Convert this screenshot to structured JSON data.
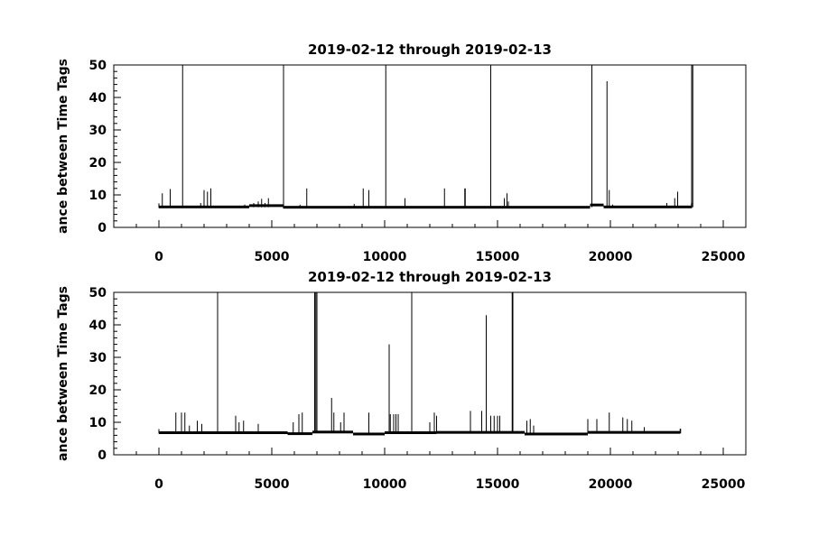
{
  "chart_data": [
    {
      "type": "line",
      "title": "2019-02-12 through 2019-02-13",
      "ylabel": "ance between Time Tags",
      "xlabel": "",
      "xlim": [
        -2000,
        26000
      ],
      "ylim": [
        0,
        50
      ],
      "xticks": [
        0,
        5000,
        10000,
        15000,
        20000,
        25000
      ],
      "yticks": [
        0,
        10,
        20,
        30,
        40,
        50
      ],
      "grid": false,
      "baseline": 6.2,
      "segments": [
        {
          "x": [
            0,
            4000
          ],
          "y": 6.3
        },
        {
          "x": [
            4000,
            5500
          ],
          "y": 6.7
        },
        {
          "x": [
            5500,
            19100
          ],
          "y": 6.2
        },
        {
          "x": [
            19100,
            19700
          ],
          "y": 6.9
        },
        {
          "x": [
            19700,
            23600
          ],
          "y": 6.3
        }
      ],
      "x": [
        150,
        500,
        1050,
        1850,
        2000,
        2150,
        2300,
        3800,
        4200,
        4400,
        4550,
        4700,
        4850,
        5520,
        6250,
        6550,
        8650,
        9050,
        9300,
        10050,
        10900,
        12650,
        13550,
        13570,
        14700,
        15300,
        15420,
        15480,
        19180,
        19850,
        19950,
        20100,
        22500,
        22850,
        22980,
        23600,
        23650
      ],
      "y": [
        10.5,
        11.8,
        50,
        7.5,
        11.5,
        11,
        12,
        7,
        7.5,
        8,
        8.8,
        7.5,
        9,
        50,
        7,
        12,
        7.2,
        12,
        11.5,
        50,
        9,
        12,
        12,
        12,
        50,
        9,
        10.5,
        8,
        50,
        45,
        11.5,
        7,
        7.5,
        9,
        11,
        50,
        50
      ]
    },
    {
      "type": "line",
      "title": "2019-02-12 through 2019-02-13",
      "ylabel": "ance between Time Tags",
      "xlabel": "",
      "xlim": [
        -2000,
        26000
      ],
      "ylim": [
        0,
        50
      ],
      "xticks": [
        0,
        5000,
        10000,
        15000,
        20000,
        25000
      ],
      "yticks": [
        0,
        10,
        20,
        30,
        40,
        50
      ],
      "grid": false,
      "baseline": 6.8,
      "segments": [
        {
          "x": [
            0,
            5700
          ],
          "y": 6.8
        },
        {
          "x": [
            5700,
            6800
          ],
          "y": 6.5
        },
        {
          "x": [
            6800,
            8600
          ],
          "y": 7.0
        },
        {
          "x": [
            8600,
            10000
          ],
          "y": 6.4
        },
        {
          "x": [
            10000,
            12300
          ],
          "y": 6.8
        },
        {
          "x": [
            12300,
            16200
          ],
          "y": 6.9
        },
        {
          "x": [
            16200,
            19000
          ],
          "y": 6.4
        },
        {
          "x": [
            19000,
            23100
          ],
          "y": 6.9
        }
      ],
      "x": [
        750,
        1000,
        1150,
        1350,
        1700,
        1900,
        2600,
        3400,
        3550,
        3750,
        4400,
        5950,
        6200,
        6350,
        6900,
        6950,
        7000,
        7650,
        7750,
        8050,
        8200,
        9300,
        10200,
        10250,
        10400,
        10500,
        10600,
        11200,
        12000,
        12200,
        12300,
        13800,
        14300,
        14500,
        14700,
        14850,
        15000,
        15100,
        15650,
        15680,
        16300,
        16450,
        16600,
        19000,
        19400,
        19950,
        20550,
        20750,
        20950,
        21500,
        23100
      ],
      "y": [
        13,
        13,
        13,
        9,
        10.5,
        9.5,
        50,
        12,
        10,
        10.5,
        9.5,
        10,
        12.5,
        13,
        50,
        50,
        50,
        17.5,
        13,
        10,
        13,
        13,
        34,
        12.5,
        12.5,
        12.5,
        12.5,
        50,
        10,
        13,
        12,
        13.5,
        13.5,
        43,
        12,
        12,
        12,
        12,
        50,
        50,
        10.5,
        11,
        9,
        11,
        11,
        13,
        11.5,
        11,
        10.5,
        8.5,
        8
      ]
    }
  ]
}
